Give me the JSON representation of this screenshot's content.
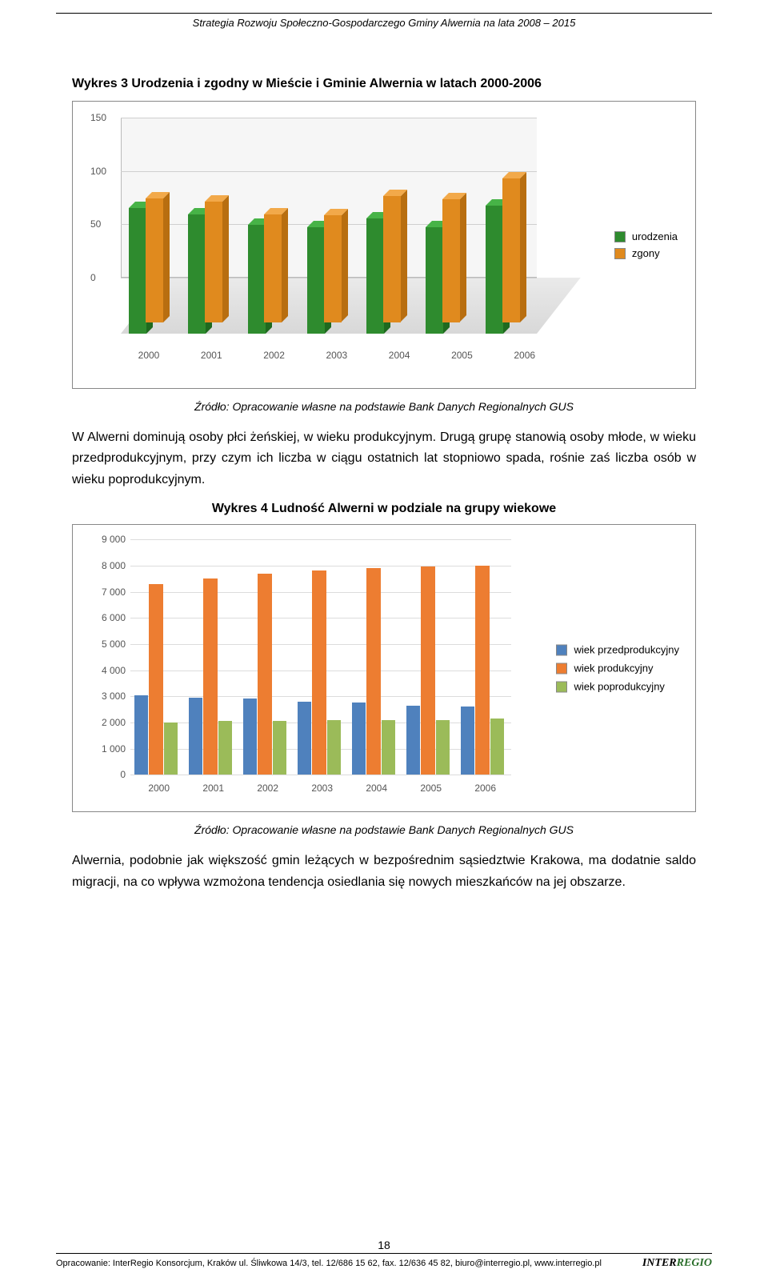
{
  "header": {
    "title": "Strategia Rozwoju Społeczno-Gospodarczego Gminy Alwernia na lata 2008 – 2015"
  },
  "chart1": {
    "title": "Wykres 3 Urodzenia i zgodny w Mieście i Gminie Alwernia w latach 2000-2006",
    "type": "bar3d",
    "categories": [
      "2000",
      "2001",
      "2002",
      "2003",
      "2004",
      "2005",
      "2006"
    ],
    "series": [
      {
        "name": "urodzenia",
        "color_front": "#2e8b2e",
        "color_top": "#47b347",
        "color_side": "#1f6a1f",
        "values": [
          118,
          112,
          102,
          100,
          108,
          100,
          120
        ]
      },
      {
        "name": "zgony",
        "color_front": "#e08a1e",
        "color_top": "#f2a94a",
        "color_side": "#b86e10",
        "values": [
          116,
          113,
          101,
          100,
          118,
          115,
          135
        ]
      }
    ],
    "ylim": [
      0,
      150
    ],
    "ytick_step": 50,
    "background": "#ffffff",
    "grid_color": "#cfcfcf",
    "axis_label_fontsize": 12,
    "axis_label_color": "#555555"
  },
  "source1": "Źródło: Opracowanie własne na podstawie Bank Danych Regionalnych GUS",
  "para1": "W Alwerni dominują osoby płci żeńskiej, w wieku produkcyjnym. Drugą grupę stanowią osoby młode, w wieku przedprodukcyjnym, przy czym ich liczba w ciągu ostatnich lat stopniowo spada, rośnie zaś liczba osób w wieku poprodukcyjnym.",
  "chart2": {
    "title": "Wykres 4 Ludność Alwerni w podziale na grupy wiekowe",
    "type": "bar",
    "categories": [
      "2000",
      "2001",
      "2002",
      "2003",
      "2004",
      "2005",
      "2006"
    ],
    "series": [
      {
        "name": "wiek przedprodukcyjny",
        "color": "#4f81bd",
        "values": [
          3050,
          2950,
          2900,
          2800,
          2750,
          2650,
          2600
        ]
      },
      {
        "name": "wiek produkcyjny",
        "color": "#ed7d31",
        "values": [
          7300,
          7500,
          7700,
          7800,
          7900,
          7950,
          8000
        ]
      },
      {
        "name": "wiek poprodukcyjny",
        "color": "#9bbb59",
        "values": [
          2000,
          2050,
          2050,
          2100,
          2100,
          2100,
          2150
        ]
      }
    ],
    "ylim": [
      0,
      9000
    ],
    "ytick_step": 1000,
    "ytick_labels": [
      "0",
      "1 000",
      "2 000",
      "3 000",
      "4 000",
      "5 000",
      "6 000",
      "7 000",
      "8 000",
      "9 000"
    ],
    "background": "#ffffff",
    "grid_color": "#dcdcdc",
    "axis_label_fontsize": 12,
    "axis_label_color": "#555555"
  },
  "source2": "Źródło: Opracowanie własne na podstawie Bank Danych Regionalnych GUS",
  "para2": "Alwernia, podobnie jak większość gmin leżących w bezpośrednim sąsiedztwie Krakowa, ma dodatnie saldo migracji, na co wpływa wzmożona tendencja osiedlania się nowych mieszkańców na jej obszarze.",
  "footer": {
    "page": "18",
    "text": "Opracowanie: InterRegio Konsorcjum, Kraków ul. Śliwkowa 14/3, tel. 12/686 15 62, fax. 12/636 45 82, biuro@interregio.pl, www.interregio.pl",
    "logo_inter": "INTER",
    "logo_regio": "REGIO"
  }
}
